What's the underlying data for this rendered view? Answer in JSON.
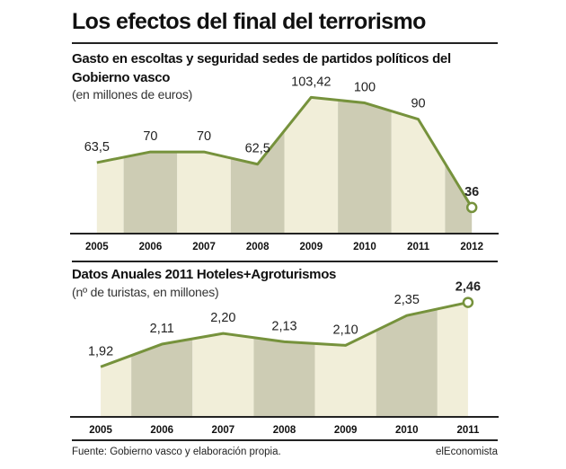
{
  "title": "Los efectos del final del terrorismo",
  "colors": {
    "line": "#76923c",
    "band_light": "#f1eed9",
    "band_dark": "#cdccb4",
    "axis": "#222222"
  },
  "chart_data": [
    {
      "type": "area",
      "title": "Gasto en escoltas y seguridad sedes de partidos políticos del Gobierno vasco",
      "subtitle": "(en millones de euros)",
      "categories": [
        "2005",
        "2006",
        "2007",
        "2008",
        "2009",
        "2010",
        "2011",
        "2012"
      ],
      "values": [
        63.5,
        70,
        70,
        62.5,
        103.42,
        100,
        90,
        36
      ],
      "value_labels": [
        "63,5",
        "70",
        "70",
        "62,5",
        "103,42",
        "100",
        "90",
        "36"
      ],
      "highlight_last": true,
      "grid": false,
      "ylim": [
        20,
        108
      ]
    },
    {
      "type": "area",
      "title": "Datos Anuales 2011 Hoteles+Agroturismos",
      "subtitle": "(nº de turistas, en millones)",
      "categories": [
        "2005",
        "2006",
        "2007",
        "2008",
        "2009",
        "2010",
        "2011"
      ],
      "values": [
        1.92,
        2.11,
        2.2,
        2.13,
        2.1,
        2.35,
        2.46
      ],
      "value_labels": [
        "1,92",
        "2,11",
        "2,20",
        "2,13",
        "2,10",
        "2,35",
        "2,46"
      ],
      "highlight_last": true,
      "grid": false,
      "ylim": [
        1.5,
        2.6
      ]
    }
  ],
  "footer": {
    "source": "Fuente: Gobierno vasco y elaboración propia.",
    "brand": "elEconomista"
  }
}
